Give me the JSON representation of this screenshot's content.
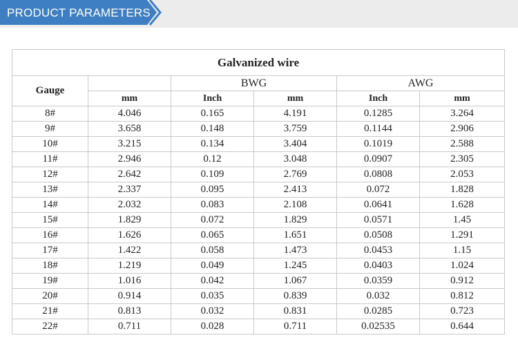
{
  "header": {
    "title": "PRODUCT PARAMETERS",
    "accent_color": "#3e7fc4"
  },
  "table": {
    "title": "Galvanized wire",
    "gauge_header": "Gauge",
    "groups": [
      "BWG",
      "AWG"
    ],
    "units": [
      "mm",
      "Inch",
      "mm",
      "Inch",
      "mm"
    ],
    "rows": [
      [
        "8#",
        "4.046",
        "0.165",
        "4.191",
        "0.1285",
        "3.264"
      ],
      [
        "9#",
        "3.658",
        "0.148",
        "3.759",
        "0.1144",
        "2.906"
      ],
      [
        "10#",
        "3.215",
        "0.134",
        "3.404",
        "0.1019",
        "2.588"
      ],
      [
        "11#",
        "2.946",
        "0.12",
        "3.048",
        "0.0907",
        "2.305"
      ],
      [
        "12#",
        "2.642",
        "0.109",
        "2.769",
        "0.0808",
        "2.053"
      ],
      [
        "13#",
        "2.337",
        "0.095",
        "2.413",
        "0.072",
        "1.828"
      ],
      [
        "14#",
        "2.032",
        "0.083",
        "2.108",
        "0.0641",
        "1.628"
      ],
      [
        "15#",
        "1.829",
        "0.072",
        "1.829",
        "0.0571",
        "1.45"
      ],
      [
        "16#",
        "1.626",
        "0.065",
        "1.651",
        "0.0508",
        "1.291"
      ],
      [
        "17#",
        "1.422",
        "0.058",
        "1.473",
        "0.0453",
        "1.15"
      ],
      [
        "18#",
        "1.219",
        "0.049",
        "1.245",
        "0.0403",
        "1.024"
      ],
      [
        "19#",
        "1.016",
        "0.042",
        "1.067",
        "0.0359",
        "0.912"
      ],
      [
        "20#",
        "0.914",
        "0.035",
        "0.839",
        "0.032",
        "0.812"
      ],
      [
        "21#",
        "0.813",
        "0.032",
        "0.831",
        "0.0285",
        "0.723"
      ],
      [
        "22#",
        "0.711",
        "0.028",
        "0.711",
        "0.02535",
        "0.644"
      ]
    ]
  }
}
